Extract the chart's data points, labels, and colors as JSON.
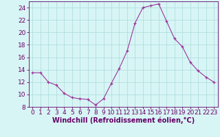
{
  "x": [
    0,
    1,
    2,
    3,
    4,
    5,
    6,
    7,
    8,
    9,
    10,
    11,
    12,
    13,
    14,
    15,
    16,
    17,
    18,
    19,
    20,
    21,
    22,
    23
  ],
  "y": [
    13.5,
    13.5,
    12.0,
    11.5,
    10.2,
    9.5,
    9.3,
    9.2,
    8.3,
    9.3,
    11.8,
    14.2,
    17.0,
    21.5,
    24.0,
    24.3,
    24.6,
    21.8,
    19.0,
    17.7,
    15.2,
    13.8,
    12.8,
    12.0
  ],
  "bg_color": "#d8f5f5",
  "grid_color": "#b0dede",
  "line_color": "#993399",
  "marker_color": "#993399",
  "xlabel": "Windchill (Refroidissement éolien,°C)",
  "ylabel": "",
  "ylim": [
    8,
    25
  ],
  "yticks": [
    8,
    10,
    12,
    14,
    16,
    18,
    20,
    22,
    24
  ],
  "xtick_labels": [
    "0",
    "1",
    "2",
    "3",
    "4",
    "5",
    "6",
    "7",
    "8",
    "9",
    "10",
    "11",
    "12",
    "13",
    "14",
    "15",
    "16",
    "17",
    "18",
    "19",
    "20",
    "21",
    "22",
    "23"
  ],
  "title": "",
  "font_color": "#660066",
  "font_size": 6.5,
  "xlabel_font_size": 7.0
}
